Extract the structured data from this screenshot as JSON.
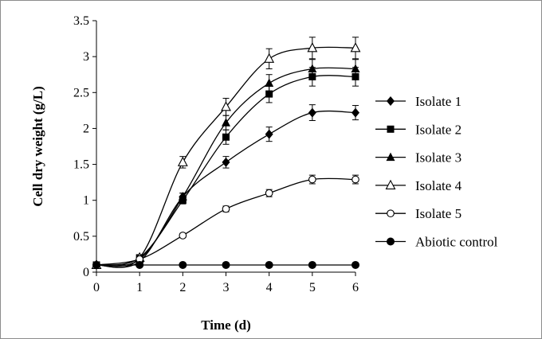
{
  "chart_data": {
    "type": "line",
    "title": "",
    "xlabel": "Time (d)",
    "ylabel": "Cell dry weight (g/L)",
    "xlim": [
      0,
      6
    ],
    "ylim": [
      0,
      3.5
    ],
    "x_ticks": [
      "0",
      "1",
      "2",
      "3",
      "4",
      "5",
      "6"
    ],
    "y_ticks": [
      "0",
      "0.5",
      "1",
      "1.5",
      "2",
      "2.5",
      "3",
      "3.5"
    ],
    "grid": false,
    "legend_position": "right",
    "x": [
      0,
      1,
      2,
      3,
      4,
      5,
      6
    ],
    "series": [
      {
        "name": "Isolate 1",
        "marker": "diamond-filled",
        "color": "#000000",
        "values": [
          0.1,
          0.15,
          1.05,
          1.53,
          1.92,
          2.22,
          2.22
        ],
        "errors": [
          0,
          0.03,
          0.05,
          0.08,
          0.1,
          0.11,
          0.1
        ]
      },
      {
        "name": "Isolate 2",
        "marker": "square-filled",
        "color": "#000000",
        "values": [
          0.1,
          0.2,
          1.0,
          1.88,
          2.48,
          2.72,
          2.72
        ],
        "errors": [
          0,
          0.03,
          0.05,
          0.1,
          0.12,
          0.13,
          0.13
        ]
      },
      {
        "name": "Isolate 3",
        "marker": "triangle-filled",
        "color": "#000000",
        "values": [
          0.1,
          0.18,
          1.05,
          2.08,
          2.63,
          2.83,
          2.83
        ],
        "errors": [
          0,
          0.03,
          0.05,
          0.1,
          0.12,
          0.13,
          0.13
        ]
      },
      {
        "name": "Isolate 4",
        "marker": "triangle-open",
        "color": "#000000",
        "values": [
          0.1,
          0.2,
          1.53,
          2.3,
          2.97,
          3.12,
          3.12
        ],
        "errors": [
          0,
          0.03,
          0.08,
          0.12,
          0.14,
          0.15,
          0.15
        ]
      },
      {
        "name": "Isolate 5",
        "marker": "circle-open",
        "color": "#000000",
        "values": [
          0.1,
          0.18,
          0.51,
          0.88,
          1.1,
          1.29,
          1.29
        ],
        "errors": [
          0,
          0.02,
          0.03,
          0.04,
          0.05,
          0.06,
          0.06
        ]
      },
      {
        "name": "Abiotic control",
        "marker": "circle-filled",
        "color": "#000000",
        "values": [
          0.1,
          0.1,
          0.1,
          0.1,
          0.1,
          0.1,
          0.1
        ],
        "errors": [
          0,
          0,
          0,
          0,
          0,
          0,
          0
        ]
      }
    ]
  }
}
